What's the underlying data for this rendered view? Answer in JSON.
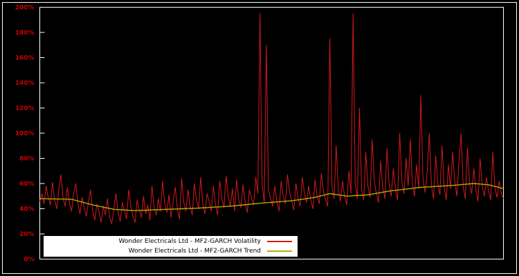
{
  "chart": {
    "background": "#000000",
    "frame_color": "#ffffff",
    "tick_label_color": "#cc0000",
    "legend_background": "#ffffff",
    "legend_text_color": "#000000"
  },
  "chart_data": {
    "type": "line",
    "title": "",
    "xlabel": "",
    "ylabel": "",
    "ylim": [
      0,
      200
    ],
    "yticks": [
      "0%",
      "20%",
      "40%",
      "60%",
      "80%",
      "100%",
      "120%",
      "140%",
      "160%",
      "180%",
      "200%"
    ],
    "grid": false,
    "legend_position": "bottom-left",
    "series": [
      {
        "name": "Wonder Electricals Ltd - MF2-GARCH Volatility",
        "color": "#d8181c",
        "values": [
          46,
          52,
          44,
          58,
          49,
          43,
          61,
          47,
          40,
          55,
          67,
          48,
          42,
          57,
          45,
          38,
          52,
          60,
          44,
          36,
          49,
          41,
          34,
          46,
          55,
          38,
          31,
          44,
          37,
          29,
          42,
          35,
          48,
          33,
          28,
          40,
          52,
          36,
          30,
          45,
          38,
          32,
          55,
          42,
          34,
          29,
          47,
          39,
          33,
          50,
          36,
          43,
          31,
          58,
          41,
          35,
          48,
          38,
          62,
          44,
          37,
          51,
          33,
          46,
          57,
          39,
          32,
          64,
          45,
          38,
          55,
          42,
          35,
          60,
          47,
          40,
          65,
          44,
          36,
          52,
          46,
          38,
          58,
          43,
          35,
          62,
          48,
          41,
          66,
          50,
          42,
          56,
          38,
          63,
          47,
          41,
          59,
          45,
          37,
          55,
          48,
          43,
          65,
          52,
          195,
          60,
          45,
          170,
          55,
          48,
          42,
          58,
          46,
          38,
          62,
          50,
          44,
          67,
          53,
          46,
          39,
          60,
          48,
          42,
          65,
          52,
          45,
          58,
          47,
          40,
          63,
          50,
          44,
          68,
          54,
          47,
          42,
          175,
          58,
          48,
          90,
          55,
          46,
          62,
          50,
          43,
          70,
          52,
          195,
          60,
          48,
          120,
          56,
          47,
          85,
          58,
          49,
          95,
          62,
          52,
          45,
          78,
          57,
          48,
          88,
          60,
          50,
          72,
          55,
          47,
          100,
          62,
          52,
          80,
          58,
          95,
          60,
          50,
          75,
          56,
          130,
          64,
          53,
          70,
          100,
          58,
          48,
          82,
          60,
          51,
          90,
          58,
          47,
          75,
          56,
          85,
          62,
          50,
          78,
          100,
          57,
          48,
          88,
          60,
          52,
          72,
          55,
          46,
          80,
          58,
          50,
          65,
          54,
          47,
          85,
          56,
          49,
          62,
          52,
          48
        ]
      },
      {
        "name": "Wonder Electricals Ltd - MF2-GARCH Trend",
        "color": "#b5b000",
        "values": [
          48.0,
          48.0,
          48.0,
          47.9,
          47.9,
          47.8,
          47.8,
          47.8,
          47.7,
          47.7,
          47.7,
          47.6,
          47.6,
          47.6,
          47.5,
          47.5,
          47.1,
          46.6,
          46.2,
          45.7,
          45.3,
          44.8,
          44.4,
          43.9,
          43.5,
          43.0,
          42.7,
          42.3,
          42.0,
          41.6,
          41.3,
          40.9,
          40.6,
          40.2,
          39.9,
          39.5,
          39.4,
          39.3,
          39.2,
          39.1,
          39.0,
          38.9,
          38.8,
          38.7,
          38.6,
          38.5,
          38.6,
          38.6,
          38.7,
          38.8,
          38.8,
          38.9,
          39.0,
          39.0,
          39.1,
          39.2,
          39.2,
          39.3,
          39.4,
          39.4,
          39.5,
          39.6,
          39.6,
          39.7,
          39.8,
          39.8,
          39.9,
          40.0,
          40.0,
          40.1,
          40.2,
          40.2,
          40.3,
          40.4,
          40.4,
          40.5,
          40.6,
          40.7,
          40.8,
          40.9,
          41.0,
          41.1,
          41.2,
          41.3,
          41.4,
          41.5,
          41.6,
          41.7,
          41.8,
          41.9,
          42.0,
          42.2,
          42.3,
          42.5,
          42.7,
          42.8,
          43.0,
          43.2,
          43.3,
          43.5,
          43.7,
          43.8,
          44.0,
          44.2,
          44.3,
          44.5,
          44.6,
          44.8,
          44.9,
          45.0,
          45.2,
          45.3,
          45.4,
          45.6,
          45.7,
          45.8,
          46.0,
          46.1,
          46.2,
          46.4,
          46.5,
          46.8,
          47.0,
          47.3,
          47.5,
          47.8,
          48.0,
          48.3,
          48.5,
          48.8,
          49.0,
          49.4,
          49.9,
          50.3,
          50.7,
          51.1,
          51.6,
          52.0,
          51.8,
          51.5,
          51.3,
          51.0,
          50.8,
          50.5,
          50.3,
          50.0,
          50.1,
          50.2,
          50.3,
          50.4,
          50.5,
          50.6,
          50.7,
          50.8,
          50.9,
          51.0,
          51.3,
          51.6,
          51.9,
          52.2,
          52.5,
          52.8,
          53.1,
          53.4,
          53.7,
          54.0,
          54.2,
          54.4,
          54.6,
          54.8,
          55.0,
          55.2,
          55.4,
          55.6,
          55.8,
          56.0,
          56.2,
          56.4,
          56.6,
          56.8,
          57.0,
          57.1,
          57.2,
          57.3,
          57.4,
          57.5,
          57.6,
          57.7,
          57.8,
          57.9,
          58.0,
          58.1,
          58.2,
          58.3,
          58.4,
          58.5,
          58.7,
          58.8,
          59.0,
          59.1,
          59.3,
          59.4,
          59.6,
          59.7,
          59.9,
          60.0,
          59.9,
          59.7,
          59.6,
          59.4,
          59.3,
          59.1,
          59.0,
          58.6,
          58.1,
          57.7,
          57.3,
          56.9,
          56.4,
          56.0
        ]
      }
    ]
  },
  "legend": {
    "items": [
      {
        "label": "Wonder Electricals Ltd - MF2-GARCH Volatility"
      },
      {
        "label": "Wonder Electricals Ltd - MF2-GARCH Trend"
      }
    ]
  }
}
